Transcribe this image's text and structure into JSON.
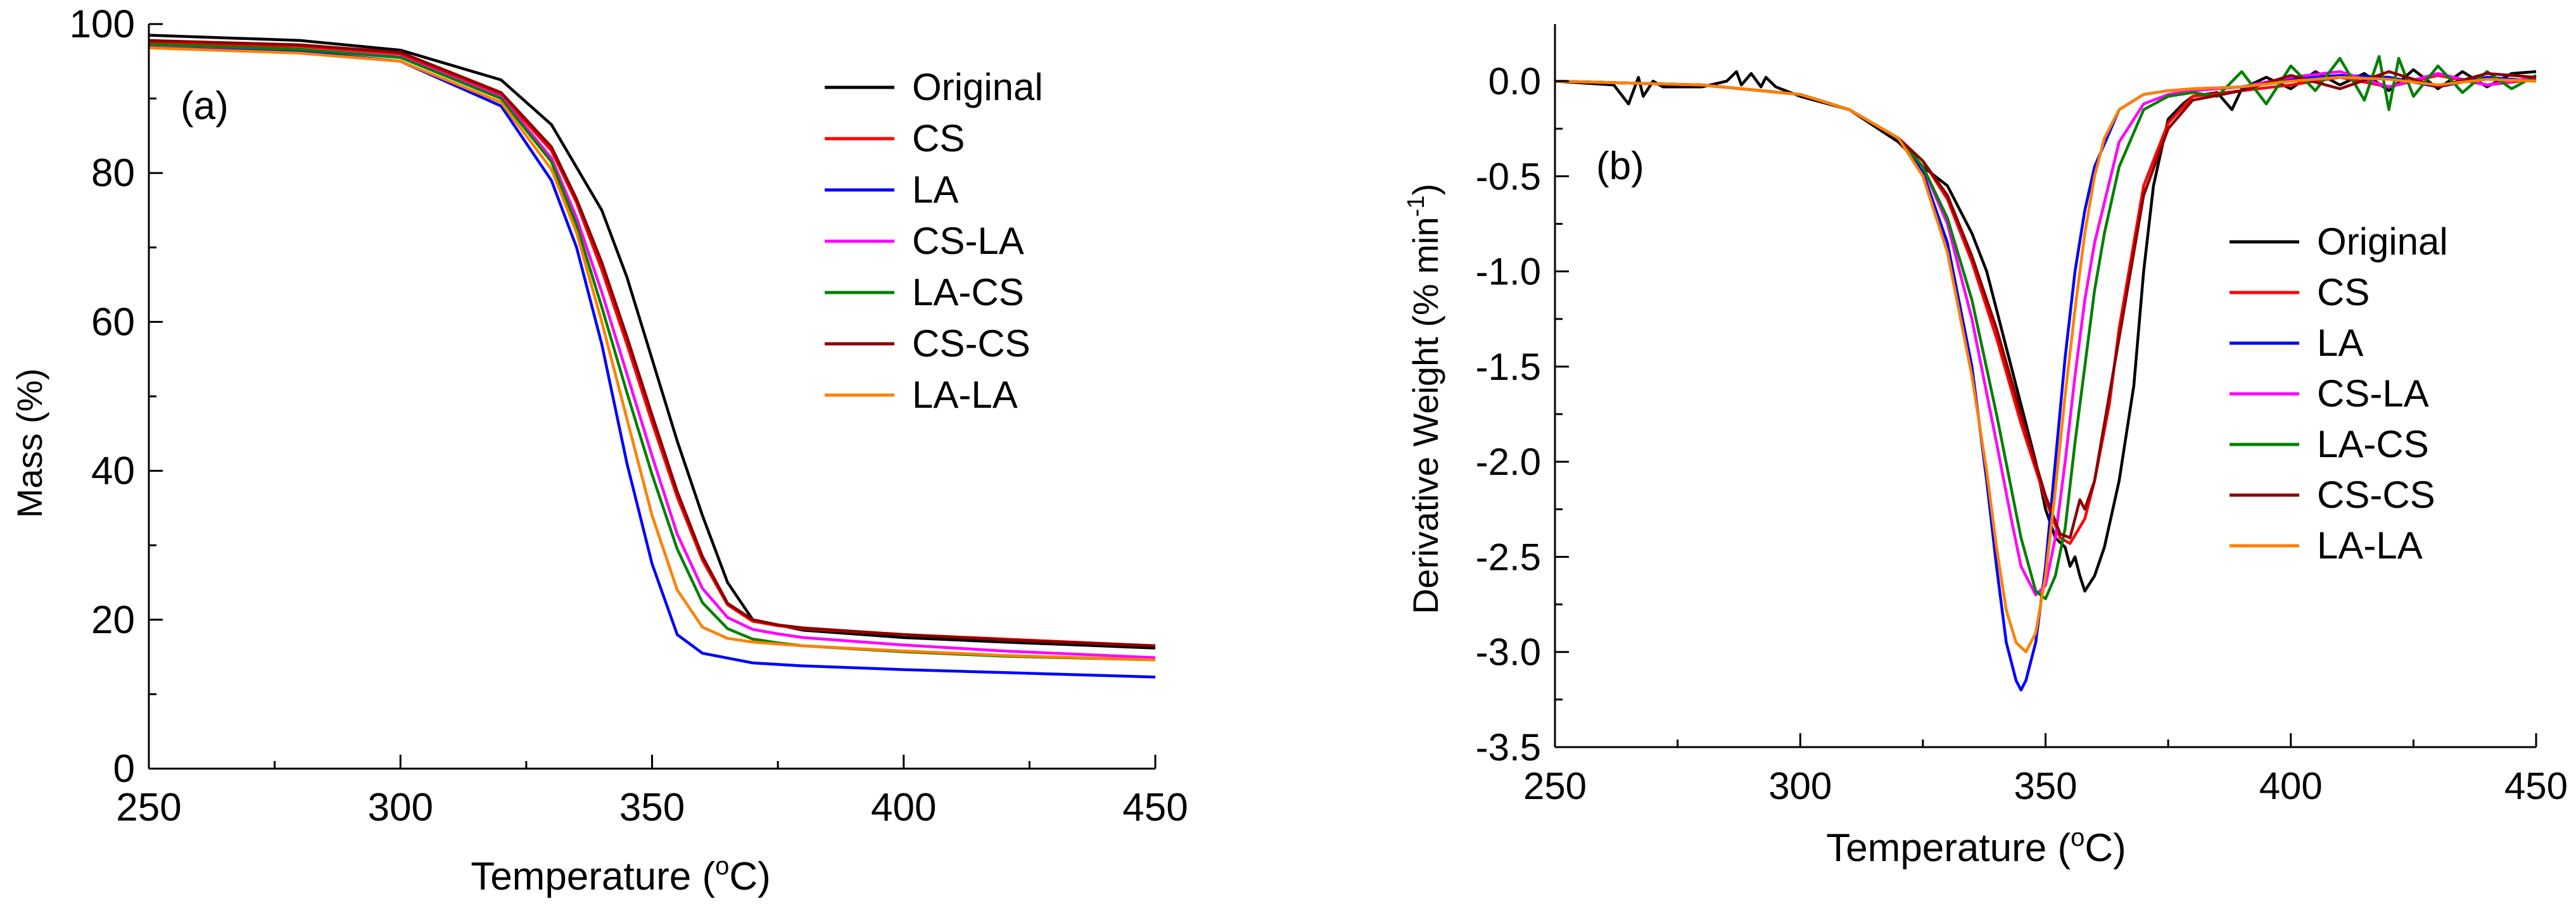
{
  "figure": {
    "panel_a_label": "(a)",
    "panel_b_label": "(b)"
  },
  "chart_data": [
    {
      "type": "line",
      "panel": "(a)",
      "title": "",
      "xlabel": "Temperature",
      "xlabel_unit_base": "C",
      "xlabel_unit_sup": "o",
      "ylabel": "Mass (%)",
      "xlim": [
        250,
        450
      ],
      "ylim": [
        0,
        100
      ],
      "xticks": [
        250,
        300,
        350,
        400,
        450
      ],
      "yticks": [
        0,
        20,
        40,
        60,
        80,
        100
      ],
      "grid": false,
      "legend_position": "top-right",
      "series": [
        {
          "name": "Original",
          "color": "#000000",
          "x": [
            250,
            280,
            300,
            320,
            330,
            340,
            345,
            350,
            355,
            360,
            365,
            370,
            375,
            380,
            400,
            420,
            450
          ],
          "y": [
            98.5,
            97.8,
            96.5,
            92.5,
            86.5,
            75,
            66,
            55,
            44,
            34,
            25,
            20,
            19.3,
            18.6,
            17.6,
            17,
            16.2
          ]
        },
        {
          "name": "CS",
          "color": "#ff0000",
          "x": [
            250,
            280,
            300,
            320,
            330,
            335,
            340,
            345,
            350,
            355,
            360,
            365,
            370,
            375,
            380,
            400,
            420,
            450
          ],
          "y": [
            97.5,
            97,
            96,
            90.5,
            83,
            76,
            67,
            57,
            46.5,
            36.5,
            28,
            22,
            19.8,
            19.2,
            18.8,
            18,
            17.4,
            16.5
          ]
        },
        {
          "name": "LA",
          "color": "#0000ff",
          "x": [
            250,
            280,
            300,
            320,
            330,
            335,
            340,
            345,
            350,
            355,
            360,
            370,
            380,
            400,
            420,
            450
          ],
          "y": [
            97,
            96.3,
            95,
            89,
            79,
            70,
            57,
            41,
            27.5,
            18,
            15.5,
            14.2,
            13.8,
            13.3,
            12.9,
            12.3
          ]
        },
        {
          "name": "CS-LA",
          "color": "#ff00ff",
          "x": [
            250,
            280,
            300,
            320,
            330,
            335,
            340,
            345,
            350,
            355,
            360,
            365,
            370,
            375,
            380,
            400,
            420,
            450
          ],
          "y": [
            97.2,
            96.6,
            95.6,
            90.2,
            82,
            74,
            64,
            53,
            42,
            31.5,
            24.2,
            20.3,
            18.7,
            18.1,
            17.6,
            16.6,
            15.8,
            14.9
          ]
        },
        {
          "name": "LA-CS",
          "color": "#008000",
          "x": [
            250,
            280,
            300,
            320,
            330,
            335,
            340,
            345,
            350,
            355,
            360,
            365,
            370,
            375,
            380,
            400,
            420,
            450
          ],
          "y": [
            97.3,
            96.6,
            95.5,
            90,
            81.5,
            73,
            62,
            50.5,
            39.5,
            29.5,
            22.3,
            18.8,
            17.4,
            16.9,
            16.5,
            15.7,
            15.1,
            14.6
          ]
        },
        {
          "name": "CS-CS",
          "color": "#8b0000",
          "x": [
            250,
            280,
            300,
            320,
            330,
            335,
            340,
            345,
            350,
            355,
            360,
            365,
            370,
            375,
            380,
            400,
            420,
            450
          ],
          "y": [
            97.8,
            97.2,
            96.2,
            90.8,
            83.5,
            76.5,
            68,
            58,
            47.5,
            37.2,
            28.5,
            22.2,
            20,
            19.3,
            18.9,
            18,
            17.3,
            16.5
          ]
        },
        {
          "name": "LA-LA",
          "color": "#ff8000",
          "x": [
            250,
            280,
            300,
            320,
            330,
            335,
            340,
            345,
            350,
            355,
            360,
            365,
            370,
            380,
            400,
            420,
            450
          ],
          "y": [
            96.8,
            96.1,
            95,
            89.5,
            80.5,
            72,
            60,
            47,
            34,
            24,
            19,
            17.5,
            17,
            16.5,
            15.8,
            15.2,
            14.6
          ]
        }
      ]
    },
    {
      "type": "line",
      "panel": "(b)",
      "title": "",
      "xlabel": "Temperature",
      "xlabel_unit_base": "C",
      "xlabel_unit_sup": "o",
      "ylabel": "Derivative Weight (% min",
      "ylabel_sup": "-1",
      "ylabel_close": ")",
      "xlim": [
        250,
        450
      ],
      "ylim": [
        -3.5,
        0.3
      ],
      "xticks": [
        250,
        300,
        350,
        400,
        450
      ],
      "yticks": [
        -3.5,
        -3.0,
        -2.5,
        -2.0,
        -1.5,
        -1.0,
        -0.5,
        0.0
      ],
      "ytick_labels": [
        "-3.5",
        "-3.0",
        "-2.5",
        "-2.0",
        "-1.5",
        "-1.0",
        "-0.5",
        "0.0"
      ],
      "grid": false,
      "legend_position": "right",
      "series": [
        {
          "name": "Original",
          "color": "#000000",
          "x": [
            250,
            262,
            265,
            267,
            268,
            270,
            272,
            280,
            285,
            287,
            288,
            290,
            292,
            293,
            295,
            300,
            310,
            320,
            325,
            330,
            335,
            338,
            340,
            342,
            345,
            348,
            350,
            352,
            354,
            355,
            356,
            357,
            358,
            360,
            362,
            365,
            368,
            370,
            372,
            375,
            378,
            380,
            385,
            388,
            390,
            395,
            400,
            405,
            410,
            415,
            420,
            425,
            430,
            435,
            440,
            445,
            450
          ],
          "y": [
            0,
            -0.02,
            -0.12,
            0.02,
            -0.08,
            0,
            -0.03,
            -0.03,
            0,
            0.05,
            -0.02,
            0.04,
            -0.03,
            0.02,
            -0.03,
            -0.08,
            -0.15,
            -0.32,
            -0.45,
            -0.55,
            -0.8,
            -1.0,
            -1.2,
            -1.4,
            -1.7,
            -2.0,
            -2.25,
            -2.4,
            -2.45,
            -2.55,
            -2.5,
            -2.6,
            -2.68,
            -2.6,
            -2.45,
            -2.1,
            -1.6,
            -1.0,
            -0.55,
            -0.2,
            -0.12,
            -0.08,
            -0.06,
            -0.15,
            -0.04,
            0.02,
            -0.04,
            0.05,
            -0.02,
            0.04,
            -0.05,
            0.06,
            -0.04,
            0.05,
            -0.03,
            0.04,
            0.05
          ]
        },
        {
          "name": "CS",
          "color": "#ff0000",
          "x": [
            250,
            280,
            300,
            310,
            320,
            325,
            330,
            335,
            340,
            345,
            350,
            353,
            355,
            358,
            360,
            363,
            365,
            368,
            370,
            375,
            380,
            390,
            400,
            410,
            420,
            430,
            440,
            450
          ],
          "y": [
            0,
            -0.02,
            -0.07,
            -0.15,
            -0.3,
            -0.42,
            -0.62,
            -0.95,
            -1.35,
            -1.8,
            -2.2,
            -2.4,
            -2.43,
            -2.3,
            -2.1,
            -1.7,
            -1.3,
            -0.85,
            -0.55,
            -0.22,
            -0.08,
            -0.05,
            -0.02,
            0.02,
            -0.03,
            0.03,
            -0.02,
            0.01
          ]
        },
        {
          "name": "LA",
          "color": "#0000ff",
          "x": [
            250,
            280,
            300,
            310,
            320,
            325,
            330,
            335,
            338,
            340,
            342,
            344,
            345,
            346,
            348,
            350,
            352,
            354,
            356,
            358,
            360,
            365,
            370,
            375,
            380,
            390,
            400,
            410,
            420,
            430,
            440,
            450
          ],
          "y": [
            0,
            -0.02,
            -0.07,
            -0.15,
            -0.3,
            -0.48,
            -0.85,
            -1.5,
            -2.1,
            -2.55,
            -2.95,
            -3.15,
            -3.2,
            -3.15,
            -2.95,
            -2.55,
            -2.0,
            -1.45,
            -1.0,
            -0.68,
            -0.45,
            -0.15,
            -0.07,
            -0.05,
            -0.04,
            -0.03,
            0.01,
            0.03,
            0.02,
            -0.03,
            0.02,
            0.0
          ]
        },
        {
          "name": "CS-LA",
          "color": "#ff00ff",
          "x": [
            250,
            280,
            300,
            310,
            320,
            325,
            330,
            335,
            340,
            343,
            345,
            348,
            350,
            352,
            354,
            356,
            358,
            360,
            365,
            370,
            375,
            380,
            390,
            400,
            410,
            420,
            430,
            440,
            450
          ],
          "y": [
            0,
            -0.02,
            -0.07,
            -0.15,
            -0.3,
            -0.45,
            -0.75,
            -1.25,
            -1.9,
            -2.3,
            -2.55,
            -2.7,
            -2.65,
            -2.4,
            -2.0,
            -1.55,
            -1.15,
            -0.85,
            -0.32,
            -0.12,
            -0.07,
            -0.05,
            -0.03,
            0.02,
            0.05,
            -0.03,
            0.04,
            -0.02,
            0.02
          ]
        },
        {
          "name": "LA-CS",
          "color": "#008000",
          "x": [
            250,
            280,
            300,
            310,
            320,
            325,
            330,
            335,
            340,
            345,
            348,
            350,
            352,
            354,
            356,
            358,
            360,
            362,
            365,
            370,
            375,
            380,
            385,
            390,
            395,
            400,
            405,
            410,
            415,
            418,
            420,
            422,
            425,
            430,
            435,
            440,
            445,
            450
          ],
          "y": [
            0,
            -0.02,
            -0.07,
            -0.15,
            -0.3,
            -0.45,
            -0.72,
            -1.15,
            -1.75,
            -2.4,
            -2.68,
            -2.72,
            -2.6,
            -2.35,
            -1.9,
            -1.5,
            -1.1,
            -0.8,
            -0.45,
            -0.15,
            -0.08,
            -0.06,
            -0.08,
            0.05,
            -0.12,
            0.08,
            -0.05,
            0.12,
            -0.1,
            0.13,
            -0.15,
            0.12,
            -0.08,
            0.08,
            -0.06,
            0.05,
            -0.04,
            0.03
          ]
        },
        {
          "name": "CS-CS",
          "color": "#8b0000",
          "x": [
            250,
            280,
            300,
            310,
            320,
            325,
            330,
            335,
            340,
            345,
            350,
            353,
            355,
            357,
            358,
            360,
            362,
            365,
            368,
            370,
            375,
            380,
            390,
            400,
            410,
            420,
            430,
            440,
            450
          ],
          "y": [
            0,
            -0.02,
            -0.07,
            -0.15,
            -0.3,
            -0.42,
            -0.6,
            -0.92,
            -1.3,
            -1.75,
            -2.18,
            -2.38,
            -2.4,
            -2.2,
            -2.25,
            -2.1,
            -1.8,
            -1.35,
            -0.9,
            -0.6,
            -0.25,
            -0.1,
            -0.05,
            0.03,
            -0.04,
            0.05,
            -0.03,
            0.04,
            0.02
          ]
        },
        {
          "name": "LA-LA",
          "color": "#ff8000",
          "x": [
            250,
            280,
            300,
            310,
            320,
            325,
            330,
            335,
            338,
            340,
            342,
            344,
            346,
            348,
            350,
            352,
            354,
            356,
            358,
            360,
            362,
            365,
            370,
            375,
            380,
            390,
            400,
            410,
            420,
            430,
            440,
            450
          ],
          "y": [
            0,
            -0.02,
            -0.07,
            -0.15,
            -0.3,
            -0.5,
            -0.9,
            -1.55,
            -2.05,
            -2.45,
            -2.78,
            -2.95,
            -3.0,
            -2.9,
            -2.6,
            -2.15,
            -1.65,
            -1.2,
            -0.8,
            -0.5,
            -0.3,
            -0.15,
            -0.07,
            -0.05,
            -0.04,
            -0.03,
            0.0,
            0.02,
            0.01,
            -0.02,
            0.01,
            0.0
          ]
        }
      ]
    }
  ]
}
